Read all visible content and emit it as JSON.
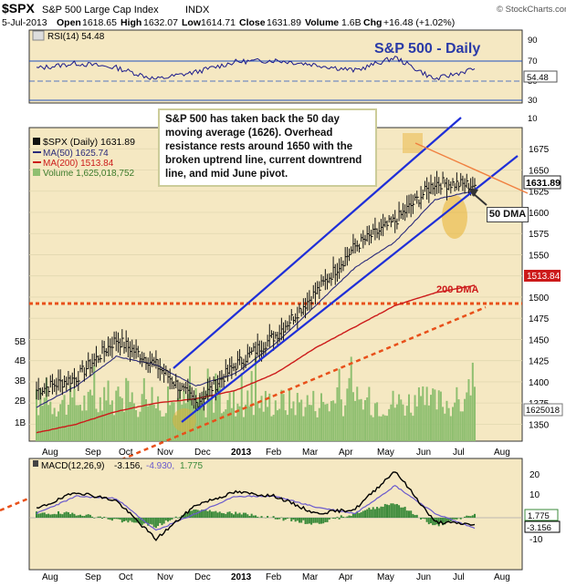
{
  "header": {
    "symbol": "$SPX",
    "name": "S&P 500 Large Cap Index",
    "exchange": "INDX",
    "watermark": "© StockCharts.com",
    "date": "5-Jul-2013",
    "open_label": "Open",
    "open": "1618.65",
    "high_label": "High",
    "high": "1632.07",
    "low_label": "Low",
    "low": "1614.71",
    "close_label": "Close",
    "close": "1631.89",
    "volume_label": "Volume",
    "volume": "1.6B",
    "chg_label": "Chg",
    "chg": "+16.48 (+1.02%)"
  },
  "rsi": {
    "legend": "RSI(14) 54.48",
    "title": "S&P 500 - Daily",
    "ticks": [
      "90",
      "70",
      "50",
      "30",
      "10"
    ],
    "last_label": "54.48"
  },
  "price": {
    "legend_main": "$SPX (Daily) 1631.89",
    "legend_ma50": "MA(50) 1625.74",
    "legend_ma200": "MA(200) 1513.84",
    "legend_volume": "Volume 1,625,018,752",
    "ticks": [
      "1675",
      "1650",
      "1625",
      "1600",
      "1575",
      "1550",
      "1525",
      "1500",
      "1475",
      "1450",
      "1425",
      "1400",
      "1375",
      "1350"
    ],
    "volume_ticks": [
      "5B",
      "4B",
      "3B",
      "2B",
      "1B"
    ],
    "last_price_label": "1631.89",
    "last_ma200_label": "1513.84",
    "last_volume_label": "1625018",
    "annotation": "S&P 500 has taken back the 50 day moving average (1626). Overhead resistance rests around 1650 with the broken uptrend line, current downtrend line, and mid June pivot.",
    "ma50_annotation": "50 DMA",
    "ma200_annotation": "200 DMA"
  },
  "macd": {
    "legend_prefix": "MACD(12,26,9)",
    "legend_macd": "-3.156,",
    "legend_signal": "-4.930,",
    "legend_hist": "1.775",
    "ticks": [
      "20",
      "10",
      "0",
      "-10"
    ],
    "last_hist_label": "1.775",
    "last_macd_label": "-3.156"
  },
  "months": [
    "Aug",
    "Sep",
    "Oct",
    "Nov",
    "Dec",
    "2013",
    "Feb",
    "Mar",
    "Apr",
    "May",
    "Jun",
    "Jul",
    "Aug"
  ],
  "colors": {
    "panel_bg": "#f5e8c2",
    "rsi_line": "#1a1a8c",
    "price_bar": "#111111",
    "ma50": "#2a2a7a",
    "ma200": "#cc1a1a",
    "trend_channel": "#1f2fd8",
    "down_trend": "#f08040",
    "support_dotted": "#e8501a",
    "volume": "#8fbf70",
    "macd_line": "#000000",
    "macd_signal": "#6a5acd",
    "macd_hist": "#3a8a3a",
    "highlight": "#e8b030"
  },
  "chart_data": [
    {
      "type": "line",
      "title": "RSI(14)",
      "x": [
        "Aug",
        "Sep",
        "Oct",
        "Nov",
        "Dec",
        "2013",
        "Feb",
        "Mar",
        "Apr",
        "May",
        "Jun",
        "Jul"
      ],
      "series": [
        {
          "name": "RSI(14)",
          "values": [
            55,
            62,
            56,
            40,
            50,
            64,
            66,
            60,
            52,
            70,
            40,
            54.48
          ]
        }
      ],
      "ylim": [
        0,
        100
      ],
      "reference_lines": [
        70,
        50,
        30
      ]
    },
    {
      "type": "line",
      "title": "S&P 500 - Daily",
      "x": [
        "Aug",
        "Sep",
        "Oct",
        "Nov",
        "Dec",
        "2013",
        "Feb",
        "Mar",
        "Apr",
        "May",
        "Jun",
        "Jul"
      ],
      "series": [
        {
          "name": "$SPX (Daily)",
          "values": [
            1390,
            1405,
            1450,
            1420,
            1375,
            1420,
            1455,
            1505,
            1560,
            1590,
            1635,
            1631.89
          ]
        },
        {
          "name": "MA(50)",
          "values": [
            1370,
            1395,
            1430,
            1420,
            1395,
            1410,
            1445,
            1490,
            1535,
            1565,
            1615,
            1625.74
          ]
        },
        {
          "name": "MA(200)",
          "values": [
            1340,
            1350,
            1365,
            1375,
            1380,
            1390,
            1410,
            1440,
            1465,
            1490,
            1505,
            1513.84
          ]
        }
      ],
      "ylim": [
        1330,
        1700
      ]
    },
    {
      "type": "line",
      "title": "MACD(12,26,9)",
      "x": [
        "Aug",
        "Sep",
        "Oct",
        "Nov",
        "Dec",
        "2013",
        "Feb",
        "Mar",
        "Apr",
        "May",
        "Jun",
        "Jul"
      ],
      "series": [
        {
          "name": "MACD",
          "values": [
            4,
            12,
            8,
            -10,
            6,
            12,
            10,
            2,
            4,
            22,
            -2,
            -3.156
          ]
        },
        {
          "name": "Signal",
          "values": [
            2,
            10,
            9,
            -6,
            2,
            10,
            10,
            5,
            2,
            15,
            2,
            -4.93
          ]
        },
        {
          "name": "Histogram",
          "values": [
            2,
            2,
            -1,
            -4,
            4,
            2,
            0,
            -3,
            2,
            7,
            -4,
            1.775
          ]
        }
      ],
      "ylim": [
        -15,
        25
      ]
    }
  ]
}
